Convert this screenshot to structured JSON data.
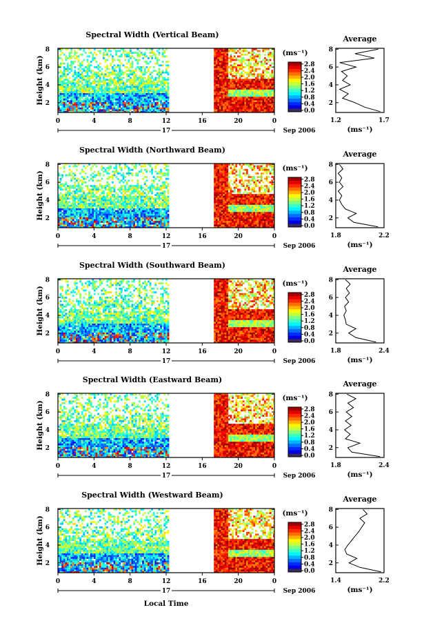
{
  "figure": {
    "xlabel": "Local Time",
    "date_label": "Sep 2006",
    "date_day_label": "17",
    "x_ticks": [
      "0",
      "4",
      "8",
      "12",
      "16",
      "20",
      "0"
    ],
    "y_ticks": [
      "2",
      "4",
      "6",
      "8"
    ],
    "ylabel": "Height (km)",
    "colorbar_unit": "(ms⁻¹)",
    "avg_title": "Average",
    "avg_unit": "(ms⁻¹)"
  },
  "chart_data": [
    {
      "type": "heatmap",
      "title": "Spectral Width (Vertical Beam)",
      "xlabel": "Local Time",
      "ylabel": "Height (km)",
      "xlim": [
        0,
        24
      ],
      "ylim": [
        0.9,
        8.1
      ],
      "data_gap_hours": [
        12.3,
        17.2
      ],
      "colorbar": {
        "label": "(ms⁻¹)",
        "ticks": [
          "0.0",
          "0.4",
          "0.8",
          "1.2",
          "1.6",
          "2.0",
          "2.4",
          "2.8"
        ],
        "range": [
          0.0,
          3.0
        ]
      },
      "average_profile": {
        "title": "Average",
        "xlabel": "(ms⁻¹)",
        "xlim": [
          1.2,
          1.7
        ],
        "x_ticks": [
          "1.2",
          "1.7"
        ],
        "height_km": [
          1.0,
          1.5,
          2.0,
          2.5,
          3.0,
          3.5,
          4.0,
          4.5,
          5.0,
          5.5,
          6.0,
          6.5,
          7.0,
          7.5,
          8.0
        ],
        "width_ms": [
          1.66,
          1.5,
          1.4,
          1.27,
          1.33,
          1.24,
          1.35,
          1.27,
          1.32,
          1.26,
          1.41,
          1.24,
          1.6,
          1.4,
          1.64
        ]
      }
    },
    {
      "type": "heatmap",
      "title": "Spectral Width (Northward Beam)",
      "xlabel": "Local Time",
      "ylabel": "Height (km)",
      "xlim": [
        0,
        24
      ],
      "ylim": [
        0.9,
        8.1
      ],
      "data_gap_hours": [
        12.3,
        17.2
      ],
      "colorbar": {
        "label": "(ms⁻¹)",
        "ticks": [
          "0.0",
          "0.4",
          "0.8",
          "1.2",
          "1.6",
          "2.0",
          "2.4",
          "2.8"
        ],
        "range": [
          0.0,
          3.0
        ]
      },
      "average_profile": {
        "title": "Average",
        "xlabel": "(ms⁻¹)",
        "xlim": [
          1.8,
          2.2
        ],
        "x_ticks": [
          "1.8",
          "2.2"
        ],
        "height_km": [
          1.0,
          1.5,
          2.0,
          2.5,
          3.0,
          3.5,
          4.0,
          4.5,
          5.0,
          5.5,
          6.0,
          6.5,
          7.0,
          7.5,
          8.0
        ],
        "width_ms": [
          2.15,
          1.95,
          1.9,
          1.97,
          1.88,
          1.85,
          1.83,
          1.85,
          1.82,
          1.86,
          1.83,
          1.85,
          1.82,
          1.86,
          1.83
        ]
      }
    },
    {
      "type": "heatmap",
      "title": "Spectral Width (Southward Beam)",
      "xlabel": "Local Time",
      "ylabel": "Height (km)",
      "xlim": [
        0,
        24
      ],
      "ylim": [
        0.9,
        8.1
      ],
      "data_gap_hours": [
        12.3,
        17.2
      ],
      "colorbar": {
        "label": "(ms⁻¹)",
        "ticks": [
          "0.0",
          "0.4",
          "0.8",
          "1.2",
          "1.6",
          "2.0",
          "2.4",
          "2.8"
        ],
        "range": [
          0.0,
          3.0
        ]
      },
      "average_profile": {
        "title": "Average",
        "xlabel": "(ms⁻¹)",
        "xlim": [
          1.8,
          2.4
        ],
        "x_ticks": [
          "1.8",
          "2.4"
        ],
        "height_km": [
          1.0,
          1.5,
          2.0,
          2.5,
          3.0,
          3.5,
          4.0,
          4.5,
          5.0,
          5.5,
          6.0,
          6.5,
          7.0,
          7.5,
          8.0
        ],
        "width_ms": [
          2.3,
          2.05,
          1.96,
          2.05,
          1.93,
          1.92,
          1.9,
          1.93,
          1.91,
          1.96,
          1.92,
          1.97,
          1.93,
          1.98,
          1.92
        ]
      }
    },
    {
      "type": "heatmap",
      "title": "Spectral Width (Eastward Beam)",
      "xlabel": "Local Time",
      "ylabel": "Height (km)",
      "xlim": [
        0,
        24
      ],
      "ylim": [
        0.9,
        8.1
      ],
      "data_gap_hours": [
        12.3,
        17.2
      ],
      "colorbar": {
        "label": "(ms⁻¹)",
        "ticks": [
          "0.0",
          "0.4",
          "0.8",
          "1.2",
          "1.6",
          "2.0",
          "2.4",
          "2.8"
        ],
        "range": [
          0.0,
          3.0
        ]
      },
      "average_profile": {
        "title": "Average",
        "xlabel": "(ms⁻¹)",
        "xlim": [
          1.8,
          2.4
        ],
        "x_ticks": [
          "1.8",
          "2.4"
        ],
        "height_km": [
          1.0,
          1.5,
          2.0,
          2.5,
          3.0,
          3.5,
          4.0,
          4.5,
          5.0,
          5.5,
          6.0,
          6.5,
          7.0,
          7.5,
          8.0
        ],
        "width_ms": [
          2.35,
          2.0,
          1.95,
          2.1,
          1.92,
          1.98,
          1.91,
          1.99,
          1.92,
          2.0,
          1.93,
          2.02,
          1.95,
          2.05,
          1.94
        ]
      }
    },
    {
      "type": "heatmap",
      "title": "Spectral Width (Westward Beam)",
      "xlabel": "Local Time",
      "ylabel": "Height (km)",
      "xlim": [
        0,
        24
      ],
      "ylim": [
        0.9,
        8.1
      ],
      "data_gap_hours": [
        12.3,
        17.2
      ],
      "colorbar": {
        "label": "(ms⁻¹)",
        "ticks": [
          "0.0",
          "0.4",
          "0.8",
          "1.2",
          "1.6",
          "2.0",
          "2.4",
          "2.8"
        ],
        "range": [
          0.0,
          3.0
        ]
      },
      "average_profile": {
        "title": "Average",
        "xlabel": "(ms⁻¹)",
        "xlim": [
          1.4,
          2.2
        ],
        "x_ticks": [
          "1.4",
          "2.2"
        ],
        "height_km": [
          1.0,
          1.5,
          2.0,
          2.5,
          3.0,
          3.5,
          4.0,
          4.5,
          5.0,
          5.5,
          6.0,
          6.5,
          7.0,
          7.5,
          8.0
        ],
        "width_ms": [
          2.15,
          1.8,
          1.62,
          1.75,
          1.58,
          1.55,
          1.6,
          1.66,
          1.72,
          1.78,
          1.83,
          1.88,
          1.8,
          1.92,
          1.85
        ]
      }
    }
  ]
}
